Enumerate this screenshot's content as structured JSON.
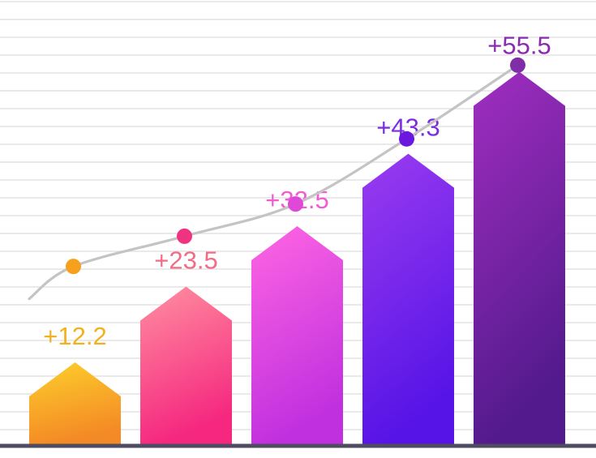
{
  "chart_data": {
    "type": "bar",
    "title": "",
    "xlabel": "",
    "ylabel": "",
    "categories": [
      "",
      "",
      "",
      "",
      ""
    ],
    "values": [
      12.2,
      23.5,
      32.5,
      43.3,
      55.5
    ],
    "value_labels": [
      "+12.2",
      "+23.5",
      "+32.5",
      "+43.3",
      "+55.5"
    ],
    "ylim": [
      0,
      65
    ],
    "grid": true,
    "legend": "none",
    "trend_line": {
      "type": "line",
      "color": "#c4c4c4",
      "points": [
        {
          "x": 0,
          "y": 26.5,
          "color": "#f7a01e"
        },
        {
          "x": 1,
          "y": 31.0,
          "color": "#f0337e"
        },
        {
          "x": 2,
          "y": 35.8,
          "color": "#e048d8"
        },
        {
          "x": 3,
          "y": 45.5,
          "color": "#6a18e0"
        },
        {
          "x": 4,
          "y": 56.5,
          "color": "#7f2ea8"
        }
      ]
    },
    "bar_colors": [
      {
        "top": "#fdcf2c",
        "bottom": "#f48a25",
        "label": "#f2b21f"
      },
      {
        "top": "#ff8fa0",
        "bottom": "#f5277f",
        "label": "#f36b86"
      },
      {
        "top": "#ff66e2",
        "bottom": "#c030df",
        "label": "#f25bd2"
      },
      {
        "top": "#9a3cf0",
        "bottom": "#5614e6",
        "label": "#7a2ee0"
      },
      {
        "top": "#a12ec0",
        "bottom": "#521a8c",
        "label": "#8a2aae"
      }
    ],
    "colors": {
      "baseline": "#4f4b60",
      "grid": "#e4e4e4"
    }
  }
}
